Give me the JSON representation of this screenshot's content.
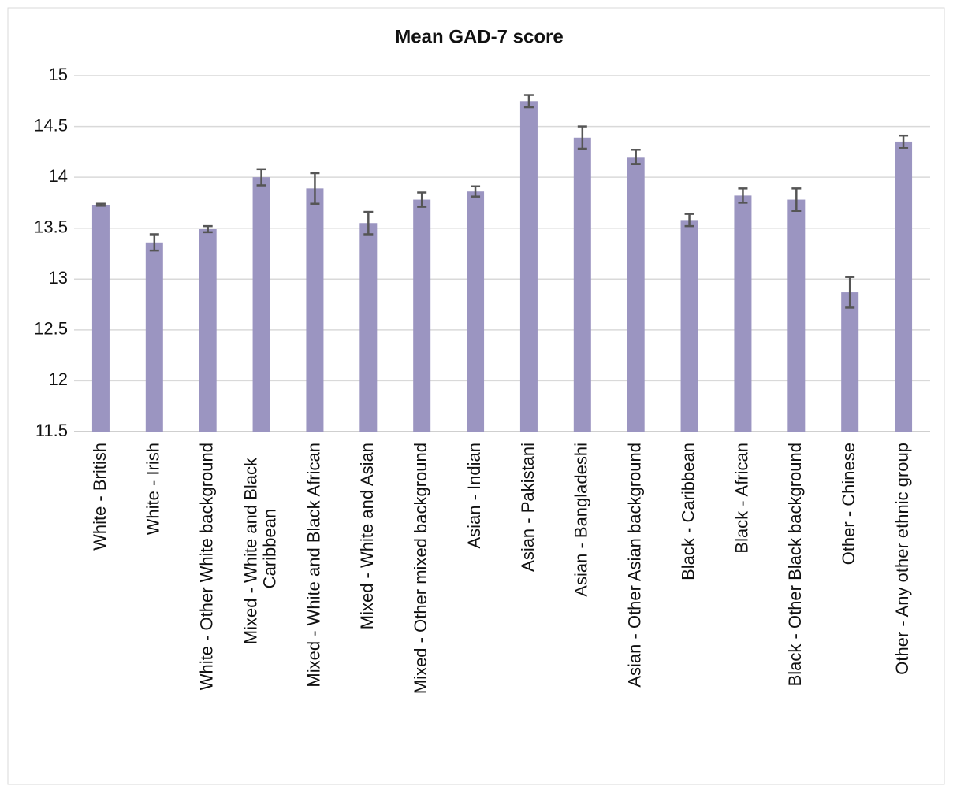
{
  "chart_data": {
    "type": "bar",
    "title": "Mean GAD-7 score",
    "categories": [
      "White - British",
      "White - Irish",
      "White - Other White background",
      "Mixed - White and Black Caribbean",
      "Mixed - White and Black African",
      "Mixed - White and Asian",
      "Mixed - Other mixed background",
      "Asian - Indian",
      "Asian - Pakistani",
      "Asian - Bangladeshi",
      "Asian - Other Asian background",
      "Black - Caribbean",
      "Black - African",
      "Black - Other Black background",
      "Other - Chinese",
      "Other - Any other ethnic group"
    ],
    "series": [
      {
        "color": "#9b95c1",
        "values": [
          13.73,
          13.36,
          13.49,
          14.0,
          13.89,
          13.55,
          13.78,
          13.86,
          14.75,
          14.39,
          14.2,
          13.58,
          13.82,
          13.78,
          12.87,
          14.35
        ],
        "errors": [
          0.01,
          0.08,
          0.03,
          0.08,
          0.15,
          0.11,
          0.07,
          0.05,
          0.06,
          0.11,
          0.07,
          0.06,
          0.07,
          0.11,
          0.15,
          0.06
        ]
      }
    ],
    "ylim": [
      11.5,
      15
    ],
    "yticks": [
      11.5,
      12,
      12.5,
      13,
      13.5,
      14,
      14.5,
      15
    ],
    "grid": true
  }
}
